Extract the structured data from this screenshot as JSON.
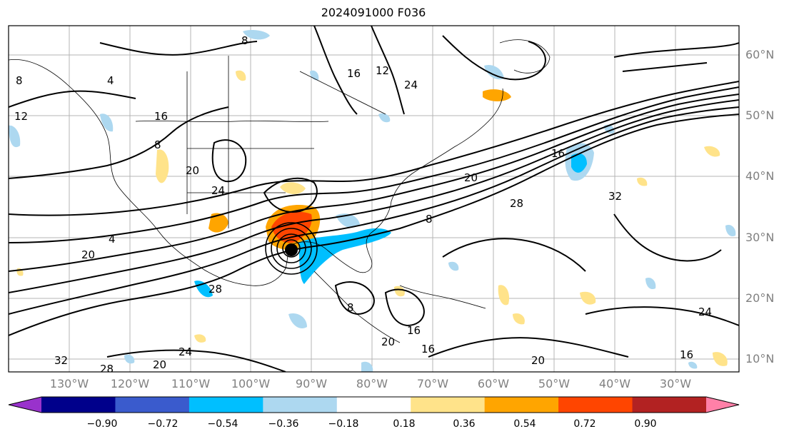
{
  "title": "2024091000 F036",
  "longitude_labels": [
    "130°W",
    "120°W",
    "110°W",
    "100°W",
    "90°W",
    "80°W",
    "70°W",
    "60°W",
    "50°W",
    "40°W",
    "30°W"
  ],
  "latitude_labels": [
    "60°N",
    "50°N",
    "40°N",
    "30°N",
    "20°N",
    "10°N"
  ],
  "colorbar": {
    "colors": [
      "#9932cc",
      "#00008b",
      "#3a5bcd",
      "#00bfff",
      "#add8f0",
      "#ffffff",
      "#ffe38a",
      "#ffa500",
      "#ff4500",
      "#b22222",
      "#ff80a8"
    ],
    "tick_labels": [
      "−0.90",
      "−0.72",
      "−0.54",
      "−0.36",
      "−0.18",
      "0.18",
      "0.36",
      "0.54",
      "0.72",
      "0.90"
    ],
    "extend": "both"
  },
  "contour_labels": [
    "8",
    "4",
    "8",
    "16",
    "8",
    "12",
    "20",
    "24",
    "28",
    "32",
    "28",
    "20",
    "16",
    "24",
    "12",
    "20",
    "8",
    "4",
    "20",
    "24",
    "16",
    "28",
    "32",
    "24",
    "16",
    "20",
    "8",
    "16",
    "20",
    "16"
  ],
  "storm_marker": "hurricane-center-icon"
}
